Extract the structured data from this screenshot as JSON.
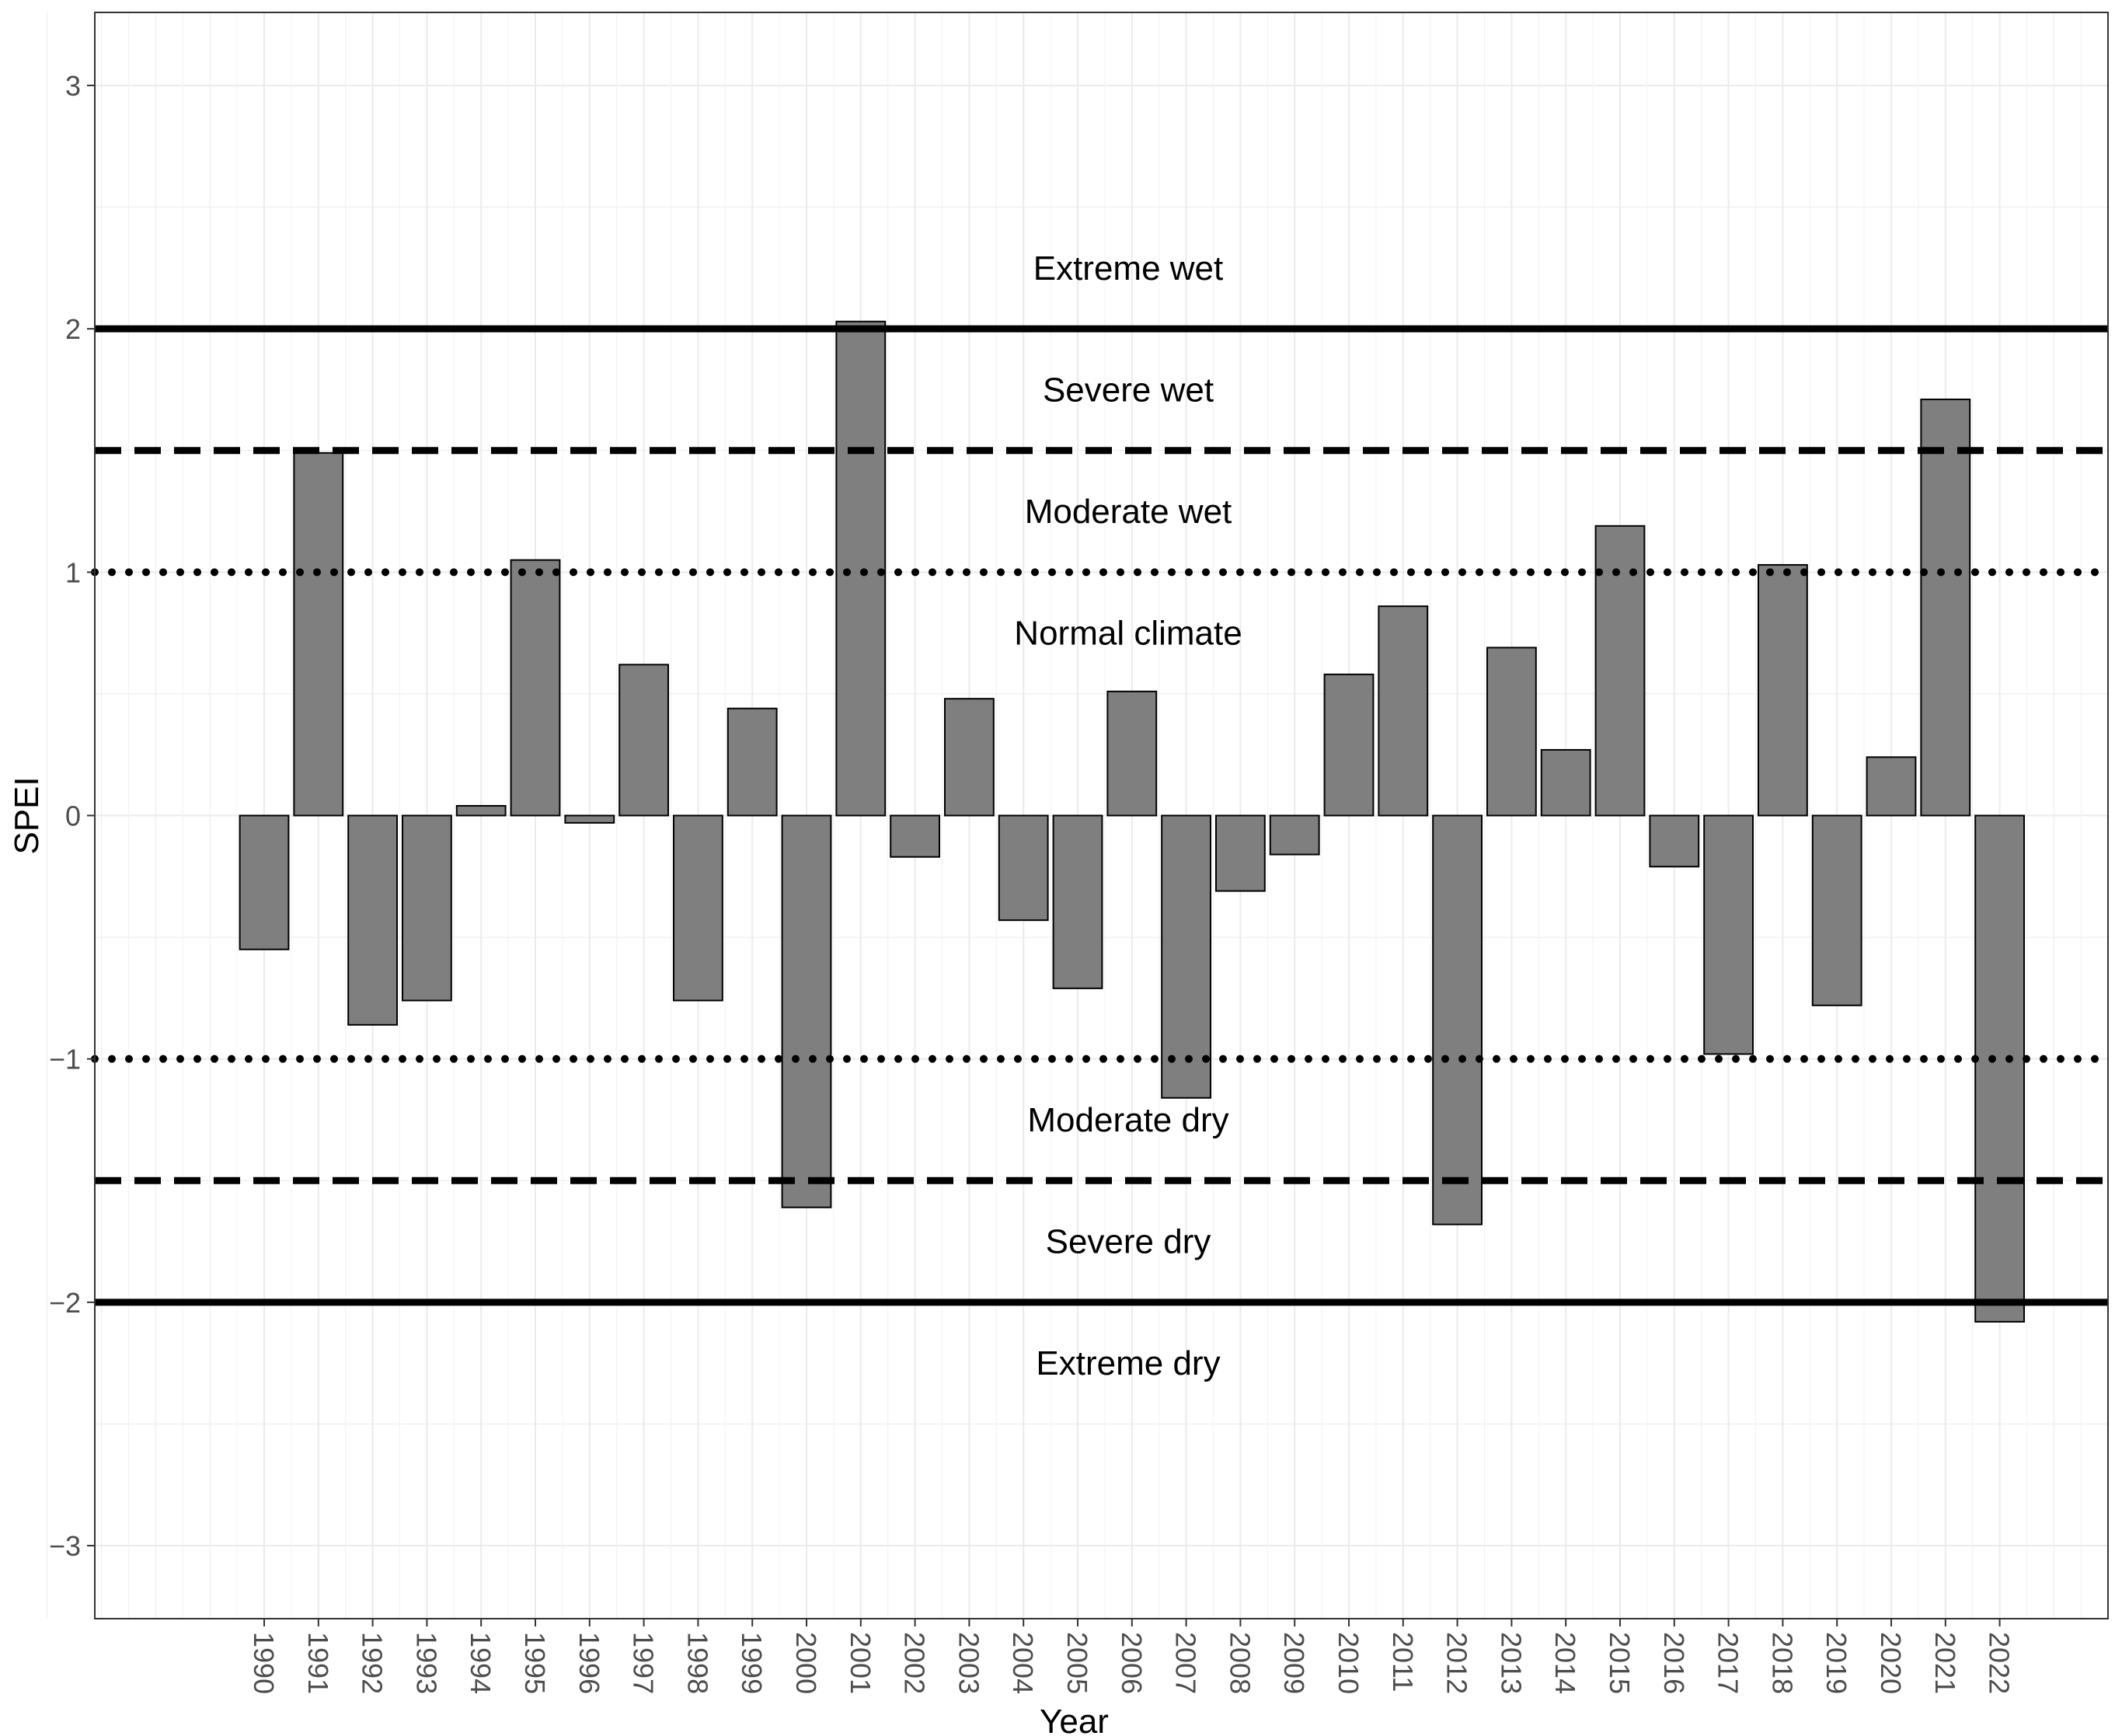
{
  "chart_data": {
    "type": "bar",
    "xlabel": "Year",
    "ylabel": "SPEI",
    "ylim": [
      -3.3,
      3.3
    ],
    "y_ticks": [
      "3",
      "2",
      "1",
      "0",
      "−1",
      "−2",
      "−3"
    ],
    "y_tick_values": [
      3,
      2,
      1,
      0,
      -1,
      -2,
      -3
    ],
    "grid": true,
    "bar_fill": "#7f7f7f",
    "bar_stroke": "#000000",
    "categories": [
      "1990",
      "1991",
      "1992",
      "1993",
      "1994",
      "1995",
      "1996",
      "1997",
      "1998",
      "1999",
      "2000",
      "2001",
      "2002",
      "2003",
      "2004",
      "2005",
      "2006",
      "2007",
      "2008",
      "2009",
      "2010",
      "2011",
      "2012",
      "2013",
      "2014",
      "2015",
      "2016",
      "2017",
      "2018",
      "2019",
      "2020",
      "2021",
      "2022"
    ],
    "values": [
      -0.55,
      1.49,
      -0.86,
      -0.76,
      0.04,
      1.05,
      -0.03,
      0.62,
      -0.76,
      0.44,
      -1.61,
      2.03,
      -0.17,
      0.48,
      -0.43,
      -0.71,
      0.51,
      -1.16,
      -0.31,
      -0.16,
      0.58,
      0.86,
      -1.68,
      0.69,
      0.27,
      1.19,
      -0.21,
      -0.98,
      1.03,
      -0.78,
      0.24,
      1.71,
      -2.08
    ],
    "reference_lines": [
      {
        "y": 2,
        "style": "solid"
      },
      {
        "y": 1.5,
        "style": "dashed"
      },
      {
        "y": 1,
        "style": "dotted"
      },
      {
        "y": -1,
        "style": "dotted"
      },
      {
        "y": -1.5,
        "style": "dashed"
      },
      {
        "y": -2,
        "style": "solid"
      }
    ],
    "band_labels": [
      {
        "text": "Extreme wet",
        "y": 2.25
      },
      {
        "text": "Severe wet",
        "y": 1.75
      },
      {
        "text": "Moderate wet",
        "y": 1.25
      },
      {
        "text": "Normal climate",
        "y": 0.75
      },
      {
        "text": "Moderate dry",
        "y": -1.25
      },
      {
        "text": "Severe dry",
        "y": -1.75
      },
      {
        "text": "Extreme dry",
        "y": -2.25
      }
    ]
  }
}
